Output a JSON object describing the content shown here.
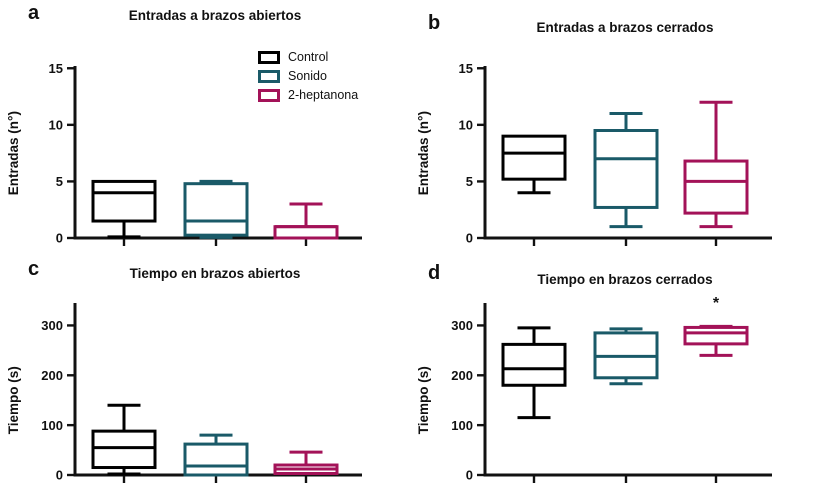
{
  "legend": {
    "items": [
      {
        "label": "Control",
        "color": "#000000"
      },
      {
        "label": "Sonido",
        "color": "#1a5a68"
      },
      {
        "label": "2-heptanona",
        "color": "#a31258"
      }
    ]
  },
  "chart_data": [
    {
      "type": "box",
      "panel_label": "a",
      "title": "Entradas a brazos abiertos",
      "ylabel": "Entradas (n°)",
      "yticks": [
        0,
        5,
        10,
        15
      ],
      "ylim": [
        0,
        15.2
      ],
      "categories": [
        "Control",
        "Sonido",
        "2-heptanona"
      ],
      "legend_position": "top-right",
      "grid": false,
      "series": [
        {
          "name": "Control",
          "color": "#000000",
          "whisker_min": 0.1,
          "q1": 1.5,
          "median": 4,
          "q3": 5,
          "whisker_max": 5
        },
        {
          "name": "Sonido",
          "color": "#1a5a68",
          "whisker_min": 0.05,
          "q1": 0.25,
          "median": 1.5,
          "q3": 4.8,
          "whisker_max": 5
        },
        {
          "name": "2-heptanona",
          "color": "#a31258",
          "whisker_min": 0,
          "q1": 0,
          "median": 1,
          "q3": 1,
          "whisker_max": 3
        }
      ],
      "annotation": null
    },
    {
      "type": "box",
      "panel_label": "b",
      "title": "Entradas a brazos cerrados",
      "ylabel": "Entradas (n°)",
      "yticks": [
        0,
        5,
        10,
        15
      ],
      "ylim": [
        0,
        15.2
      ],
      "categories": [
        "Control",
        "Sonido",
        "2-heptanona"
      ],
      "grid": false,
      "series": [
        {
          "name": "Control",
          "color": "#000000",
          "whisker_min": 4,
          "q1": 5.2,
          "median": 7.5,
          "q3": 9,
          "whisker_max": 9
        },
        {
          "name": "Sonido",
          "color": "#1a5a68",
          "whisker_min": 1,
          "q1": 2.7,
          "median": 7,
          "q3": 9.5,
          "whisker_max": 11
        },
        {
          "name": "2-heptanona",
          "color": "#a31258",
          "whisker_min": 1,
          "q1": 2.2,
          "median": 5,
          "q3": 6.8,
          "whisker_max": 12
        }
      ],
      "annotation": null
    },
    {
      "type": "box",
      "panel_label": "c",
      "title": "Tiempo en brazos abiertos",
      "ylabel": "Tiempo (s)",
      "yticks": [
        0,
        100,
        200,
        300
      ],
      "ylim": [
        0,
        345
      ],
      "categories": [
        "Control",
        "Sonido",
        "2-heptanona"
      ],
      "grid": false,
      "series": [
        {
          "name": "Control",
          "color": "#000000",
          "whisker_min": 2,
          "q1": 15,
          "median": 55,
          "q3": 88,
          "whisker_max": 140
        },
        {
          "name": "Sonido",
          "color": "#1a5a68",
          "whisker_min": 0,
          "q1": 0,
          "median": 18,
          "q3": 62,
          "whisker_max": 80
        },
        {
          "name": "2-heptanona",
          "color": "#a31258",
          "whisker_min": 3,
          "q1": 3,
          "median": 12,
          "q3": 20,
          "whisker_max": 46
        }
      ],
      "annotation": null
    },
    {
      "type": "box",
      "panel_label": "d",
      "title": "Tiempo en brazos cerrados",
      "ylabel": "Tiempo (s)",
      "yticks": [
        0,
        100,
        200,
        300
      ],
      "ylim": [
        0,
        345
      ],
      "categories": [
        "Control",
        "Sonido",
        "2-heptanona"
      ],
      "grid": false,
      "series": [
        {
          "name": "Control",
          "color": "#000000",
          "whisker_min": 115,
          "q1": 180,
          "median": 213,
          "q3": 262,
          "whisker_max": 295
        },
        {
          "name": "Sonido",
          "color": "#1a5a68",
          "whisker_min": 183,
          "q1": 195,
          "median": 238,
          "q3": 285,
          "whisker_max": 293
        },
        {
          "name": "2-heptanona",
          "color": "#a31258",
          "whisker_min": 240,
          "q1": 263,
          "median": 285,
          "q3": 296,
          "whisker_max": 298
        }
      ],
      "annotation": {
        "text": "*",
        "group_index": 2,
        "y_value": 335
      }
    }
  ]
}
